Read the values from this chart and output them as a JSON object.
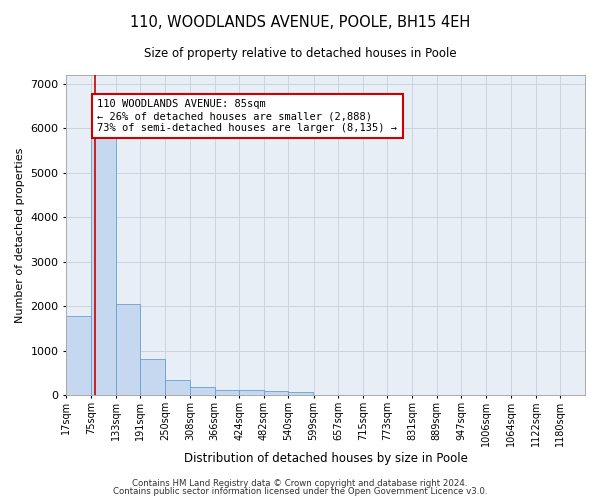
{
  "title": "110, WOODLANDS AVENUE, POOLE, BH15 4EH",
  "subtitle": "Size of property relative to detached houses in Poole",
  "xlabel": "Distribution of detached houses by size in Poole",
  "ylabel": "Number of detached properties",
  "categories": [
    "17sqm",
    "75sqm",
    "133sqm",
    "191sqm",
    "250sqm",
    "308sqm",
    "366sqm",
    "424sqm",
    "482sqm",
    "540sqm",
    "599sqm",
    "657sqm",
    "715sqm",
    "773sqm",
    "831sqm",
    "889sqm",
    "947sqm",
    "1006sqm",
    "1064sqm",
    "1122sqm",
    "1180sqm"
  ],
  "values": [
    1780,
    5800,
    2060,
    820,
    350,
    190,
    130,
    110,
    95,
    80,
    0,
    0,
    0,
    0,
    0,
    0,
    0,
    0,
    0,
    0,
    0
  ],
  "bar_color": "#c5d8ef",
  "bar_edge_color": "#6a9fd0",
  "bin_edges": [
    17,
    75,
    133,
    191,
    250,
    308,
    366,
    424,
    482,
    540,
    599,
    657,
    715,
    773,
    831,
    889,
    947,
    1006,
    1064,
    1122,
    1180,
    1238
  ],
  "property_line_x": 85,
  "annotation_text": "110 WOODLANDS AVENUE: 85sqm\n← 26% of detached houses are smaller (2,888)\n73% of semi-detached houses are larger (8,135) →",
  "annotation_box_color": "#ffffff",
  "annotation_box_edge": "#cc0000",
  "vline_color": "#cc0000",
  "ylim": [
    0,
    7200
  ],
  "yticks": [
    0,
    1000,
    2000,
    3000,
    4000,
    5000,
    6000,
    7000
  ],
  "grid_color": "#c8d0dc",
  "bg_color": "#e8eef5",
  "footer1": "Contains HM Land Registry data © Crown copyright and database right 2024.",
  "footer2": "Contains public sector information licensed under the Open Government Licence v3.0."
}
